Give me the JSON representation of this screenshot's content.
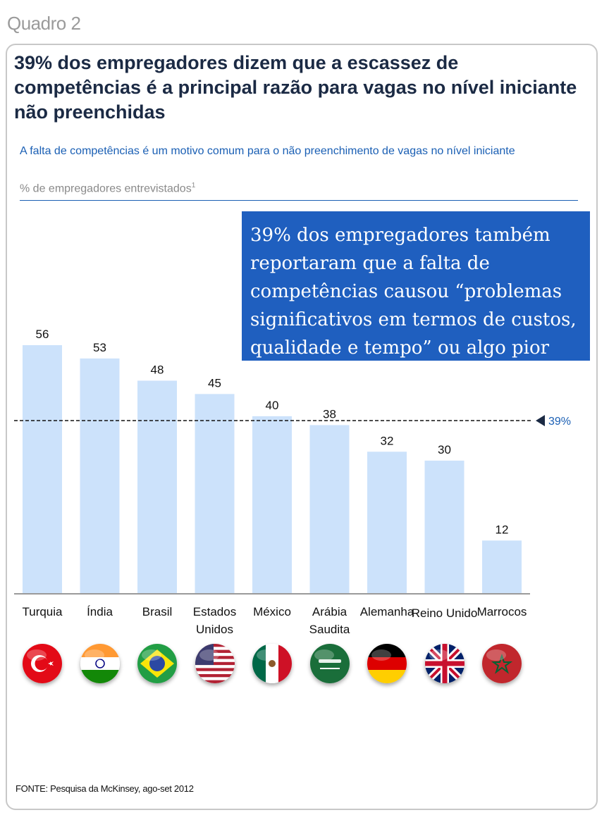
{
  "exhibit_label": "Quadro 2",
  "source": "FONTE: Pesquisa da McKinsey, ago-set 2012",
  "callout": "39% dos empregadores também reportaram que a falta de competências causou “problemas significativos em termos de custos, qualidade e tempo” ou algo pior",
  "reference_label": "39%",
  "colors": {
    "bar": "#cce2fb",
    "accent": "#1a5fb4",
    "callout_bg": "#1f5fbf"
  },
  "chart_data": {
    "type": "bar",
    "title": "39% dos empregadores dizem que a escassez de competências é a principal razão para vagas no nível iniciante não preenchidas",
    "subtitle": "A falta de competências é um motivo comum para o não preenchimento de vagas no nível iniciante",
    "unit": "% de empregadores entrevistados",
    "unit_footnote": "1",
    "categories": [
      "Turquia",
      "Índia",
      "Brasil",
      "Estados Unidos",
      "México",
      "Arábia Saudita",
      "Alemanha",
      "Reino Unido",
      "Marrocos"
    ],
    "values": [
      56,
      53,
      48,
      45,
      40,
      38,
      32,
      30,
      12
    ],
    "flags": [
      "turkey-flag-icon",
      "india-flag-icon",
      "brazil-flag-icon",
      "usa-flag-icon",
      "mexico-flag-icon",
      "saudi-arabia-flag-icon",
      "germany-flag-icon",
      "uk-flag-icon",
      "morocco-flag-icon"
    ],
    "reference_line": 39,
    "ylim": [
      0,
      56
    ]
  }
}
